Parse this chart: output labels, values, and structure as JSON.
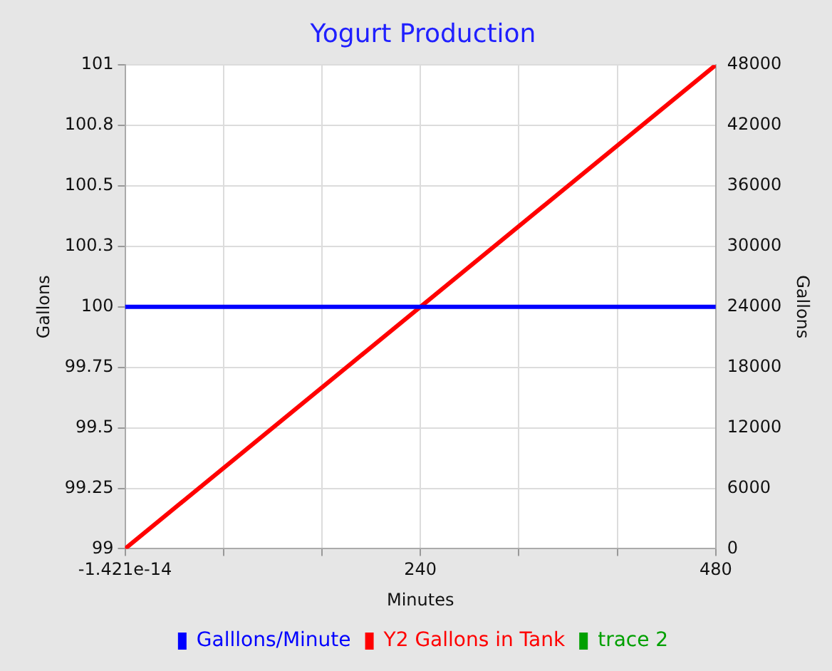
{
  "chart_data": {
    "type": "line",
    "title": "Yogurt Production",
    "xlabel": "Minutes",
    "ylabel": "Gallons",
    "y2label": "Gallons",
    "x": [
      0,
      480
    ],
    "series": [
      {
        "name": "Galllons/Minute",
        "color": "#0000ff",
        "values": [
          100,
          100
        ]
      },
      {
        "name": "Y2 Gallons in Tank",
        "color": "#ff0000",
        "values": [
          0,
          48000
        ],
        "axis": "y2"
      },
      {
        "name": "trace 2",
        "color": "#00a000",
        "values": [
          null,
          null
        ]
      }
    ],
    "xlim": [
      0,
      480
    ],
    "xticks": [
      {
        "value": 0,
        "label": "-1.421e-14"
      },
      {
        "value": 80,
        "label": null
      },
      {
        "value": 160,
        "label": null
      },
      240,
      {
        "value": 320,
        "label": null
      },
      {
        "value": 400,
        "label": null
      },
      480
    ],
    "ylim": [
      99,
      101
    ],
    "yticks": [
      99,
      99.25,
      99.5,
      99.75,
      100,
      {
        "value": 100.25,
        "label": "100.3"
      },
      100.5,
      {
        "value": 100.75,
        "label": "100.8"
      },
      101
    ],
    "y2lim": [
      0,
      48000
    ],
    "y2ticks": [
      0,
      6000,
      12000,
      18000,
      24000,
      30000,
      36000,
      42000,
      48000
    ],
    "grid": true,
    "legend": "bottom",
    "marker": "none",
    "line_style": "solid"
  }
}
